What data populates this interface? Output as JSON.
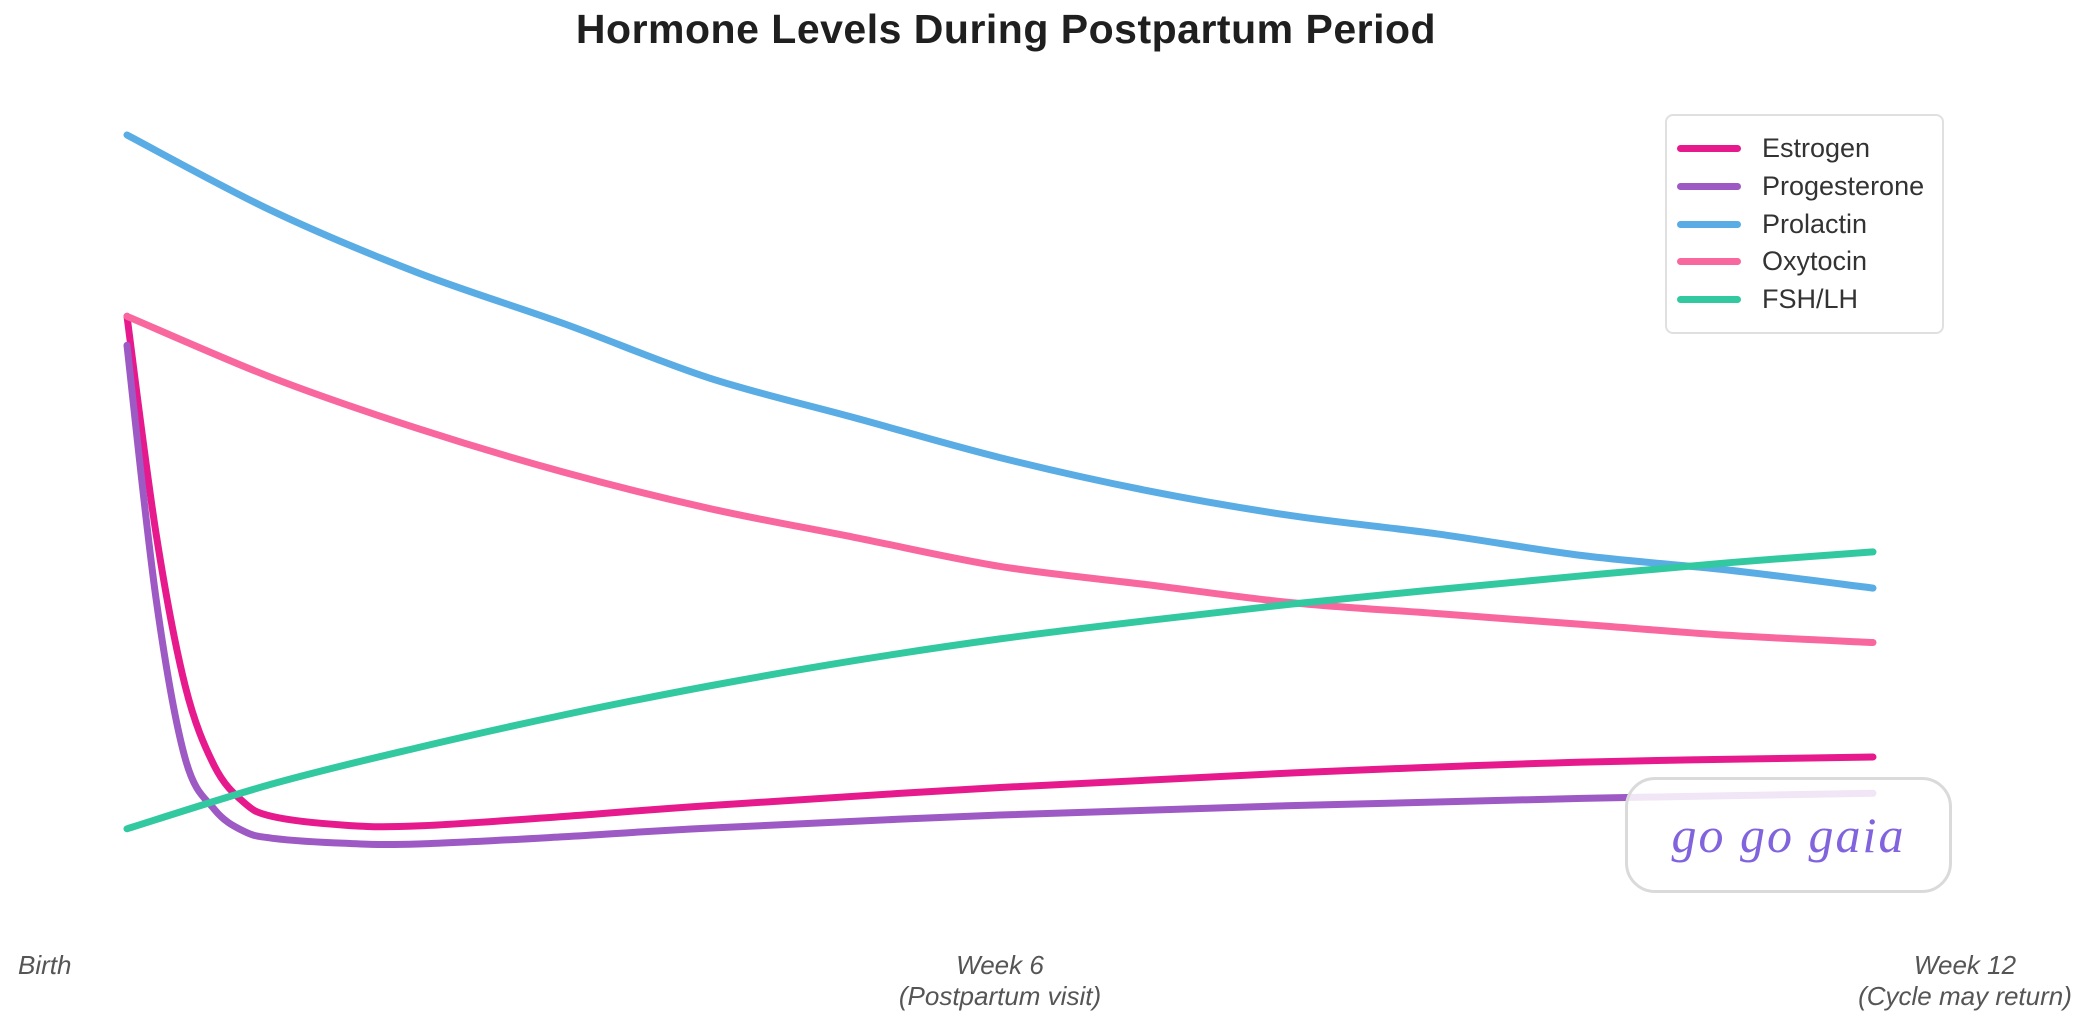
{
  "title": "Hormone Levels During Postpartum Period",
  "x_axis": {
    "left": {
      "line1": "Birth"
    },
    "center": {
      "line1": "Week 6",
      "line2": "(Postpartum visit)"
    },
    "right": {
      "line1": "Week 12",
      "line2": "(Cycle may return)"
    }
  },
  "legend": {
    "position": "top-right",
    "items": [
      {
        "label": "Estrogen",
        "color": "#e61a8d"
      },
      {
        "label": "Progesterone",
        "color": "#9d59c4"
      },
      {
        "label": "Prolactin",
        "color": "#5aace4"
      },
      {
        "label": "Oxytocin",
        "color": "#f9679f"
      },
      {
        "label": "FSH/LH",
        "color": "#33c9a0"
      }
    ]
  },
  "watermark": {
    "text": "go go gaia",
    "color": "#8263de"
  },
  "colors": {
    "background": "#ffffff",
    "title_text": "#1f1f1f",
    "axis_label_text": "#555555",
    "legend_border": "#e0e0e0",
    "badge_border": "#dadada"
  },
  "chart_data": {
    "type": "line",
    "title": "Hormone Levels During Postpartum Period",
    "xlabel": "",
    "ylabel": "",
    "x_unit": "weeks postpartum",
    "x_range": [
      0,
      12
    ],
    "y_range": [
      0,
      100
    ],
    "grid": false,
    "axes_visible": false,
    "legend_position": "top-right",
    "x_tick_positions": [
      0,
      6,
      12
    ],
    "x_tick_labels": [
      "Birth",
      "Week 6\n(Postpartum visit)",
      "Week 12\n(Cycle may return)"
    ],
    "series": [
      {
        "name": "Estrogen",
        "color": "#e61a8d",
        "shape": "sharp drop from high at birth to minimum ~week 2, then slow gradual rise",
        "x": [
          0,
          0.2,
          0.4,
          0.6,
          0.8,
          1,
          1.5,
          2,
          3,
          4,
          6,
          8,
          10,
          12
        ],
        "values": [
          75,
          45,
          24,
          13,
          8,
          6,
          4.8,
          4.7,
          6,
          7.5,
          10,
          12,
          13.5,
          14.2
        ]
      },
      {
        "name": "Progesterone",
        "color": "#9d59c4",
        "shape": "sharp drop from high at birth to minimum ~week 2, then very slow rise, stays lowest",
        "x": [
          0,
          0.2,
          0.4,
          0.6,
          0.8,
          1,
          1.5,
          2,
          3,
          4,
          6,
          8,
          10,
          12
        ],
        "values": [
          71,
          36,
          14,
          7,
          4,
          3,
          2.3,
          2.2,
          3.2,
          4.4,
          6.2,
          7.5,
          8.5,
          9.2
        ]
      },
      {
        "name": "Prolactin",
        "color": "#5aace4",
        "shape": "highest at birth, smooth exponential-like decline across 12 weeks",
        "x": [
          0,
          1,
          2,
          3,
          4,
          5,
          6,
          7,
          8,
          9,
          10,
          11,
          12
        ],
        "values": [
          100,
          89.5,
          81,
          74,
          66.5,
          61,
          55.5,
          51,
          47.5,
          45,
          42,
          40,
          37.5
        ]
      },
      {
        "name": "Oxytocin",
        "color": "#f9679f",
        "shape": "high at birth, smooth gradual decline flattening toward week 12",
        "x": [
          0,
          1,
          2,
          3,
          4,
          5,
          6,
          7,
          8,
          9,
          10,
          11,
          12
        ],
        "values": [
          75,
          66.5,
          59.5,
          53.5,
          48.5,
          44.5,
          40.5,
          38,
          35.5,
          34,
          32.5,
          31,
          30
        ]
      },
      {
        "name": "FSH/LH",
        "color": "#33c9a0",
        "shape": "lowest at birth, steady rise crossing Oxytocin ~week 8 and Prolactin ~week 10.5",
        "x": [
          0,
          1,
          2,
          3,
          4,
          5,
          6,
          7,
          8,
          9,
          10,
          11,
          12
        ],
        "values": [
          4.3,
          10.5,
          15.5,
          20,
          24,
          27.5,
          30.5,
          33,
          35.3,
          37.3,
          39.2,
          41,
          42.5
        ]
      }
    ]
  }
}
